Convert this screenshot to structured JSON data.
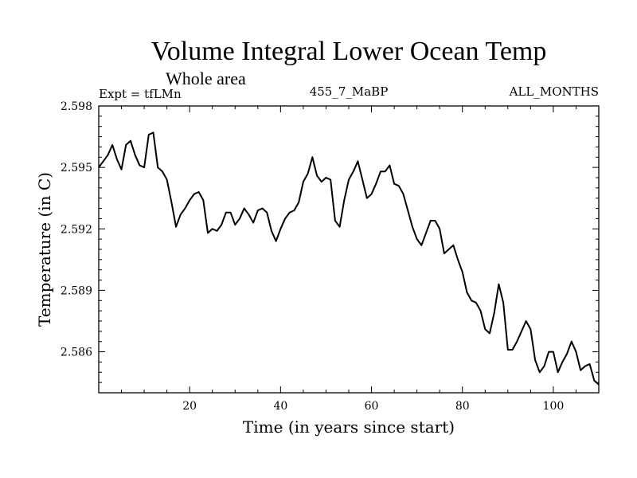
{
  "chart_data": {
    "type": "line",
    "title": "Volume Integral Lower Ocean Temp",
    "subtitle": "Whole area",
    "experiment": "Expt = tfLMn",
    "run_label": "455_7_MaBP",
    "months_label": "ALL_MONTHS",
    "xlabel": "Time (in years since start)",
    "ylabel": "Temperature (in C)",
    "xlim": [
      0,
      110
    ],
    "ylim": [
      2.584,
      2.598
    ],
    "xticks": [
      20,
      40,
      60,
      80,
      100
    ],
    "yticks": [
      2.586,
      2.589,
      2.592,
      2.595,
      2.598
    ],
    "yticklabels": [
      "2.586",
      "2.589",
      "2.592",
      "2.595",
      "2.598"
    ],
    "grid": false,
    "series": [
      {
        "name": "temperature",
        "color": "#000000",
        "x": [
          0,
          1,
          2,
          3,
          4,
          5,
          6,
          7,
          8,
          9,
          10,
          11,
          12,
          13,
          14,
          15,
          16,
          17,
          18,
          19,
          20,
          21,
          22,
          23,
          24,
          25,
          26,
          27,
          28,
          29,
          30,
          31,
          32,
          33,
          34,
          35,
          36,
          37,
          38,
          39,
          40,
          41,
          42,
          43,
          44,
          45,
          46,
          47,
          48,
          49,
          50,
          51,
          52,
          53,
          54,
          55,
          56,
          57,
          58,
          59,
          60,
          61,
          62,
          63,
          64,
          65,
          66,
          67,
          68,
          69,
          70,
          71,
          72,
          73,
          74,
          75,
          76,
          77,
          78,
          79,
          80,
          81,
          82,
          83,
          84,
          85,
          86,
          87,
          88,
          89,
          90,
          91,
          92,
          93,
          94,
          95,
          96,
          97,
          98,
          99,
          100,
          101,
          102,
          103,
          104,
          105,
          106,
          107,
          108,
          109,
          110
        ],
        "values": [
          2.595,
          2.5953,
          2.5956,
          2.5961,
          2.5954,
          2.5949,
          2.5961,
          2.5963,
          2.5956,
          2.5951,
          2.595,
          2.5966,
          2.5967,
          2.595,
          2.5948,
          2.5944,
          2.5933,
          2.5921,
          2.5927,
          2.593,
          2.5934,
          2.5937,
          2.5938,
          2.5934,
          2.5918,
          2.592,
          2.5919,
          2.5922,
          2.5928,
          2.5928,
          2.5922,
          2.5925,
          2.593,
          2.5927,
          2.5923,
          2.5929,
          2.593,
          2.5928,
          2.5919,
          2.5914,
          2.592,
          2.5925,
          2.5928,
          2.5929,
          2.5933,
          2.5943,
          2.5947,
          2.5955,
          2.5946,
          2.5943,
          2.5945,
          2.5944,
          2.5924,
          2.5921,
          2.5934,
          2.5944,
          2.5948,
          2.5953,
          2.5944,
          2.5935,
          2.5937,
          2.5942,
          2.5948,
          2.5948,
          2.5951,
          2.5942,
          2.5941,
          2.5937,
          2.5929,
          2.5921,
          2.5915,
          2.5912,
          2.5918,
          2.5924,
          2.5924,
          2.592,
          2.5908,
          2.591,
          2.5912,
          2.5905,
          2.5899,
          2.5889,
          2.5885,
          2.5884,
          2.588,
          2.5871,
          2.5869,
          2.5879,
          2.5893,
          2.5884,
          2.5861,
          2.5861,
          2.5865,
          2.587,
          2.5875,
          2.5871,
          2.5856,
          2.585,
          2.5853,
          2.586,
          2.586,
          2.585,
          2.5855,
          2.5859,
          2.5865,
          2.586,
          2.5851,
          2.5853,
          2.5854,
          2.5846,
          2.5844
        ]
      }
    ]
  }
}
